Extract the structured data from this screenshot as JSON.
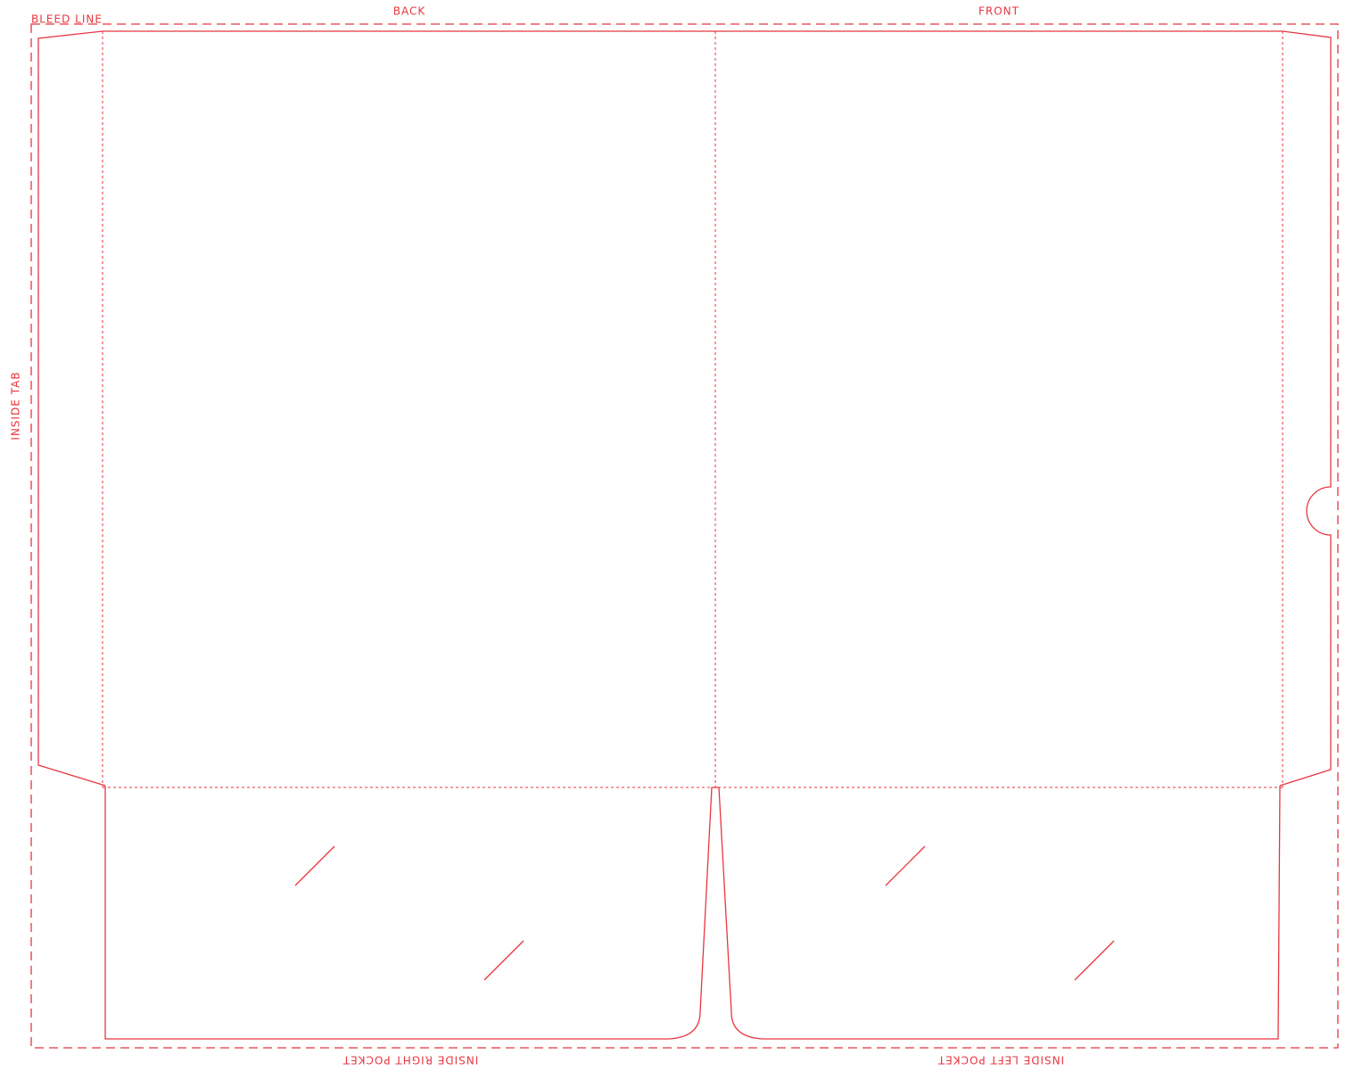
{
  "labels": {
    "bleed_line": "BLEED LINE",
    "back": "BACK",
    "front": "FRONT",
    "inside_tab": "INSIDE TAB",
    "inside_right_pocket": "INSIDE RIGHT POCKET",
    "inside_left_pocket": "INSIDE LEFT POCKET"
  }
}
